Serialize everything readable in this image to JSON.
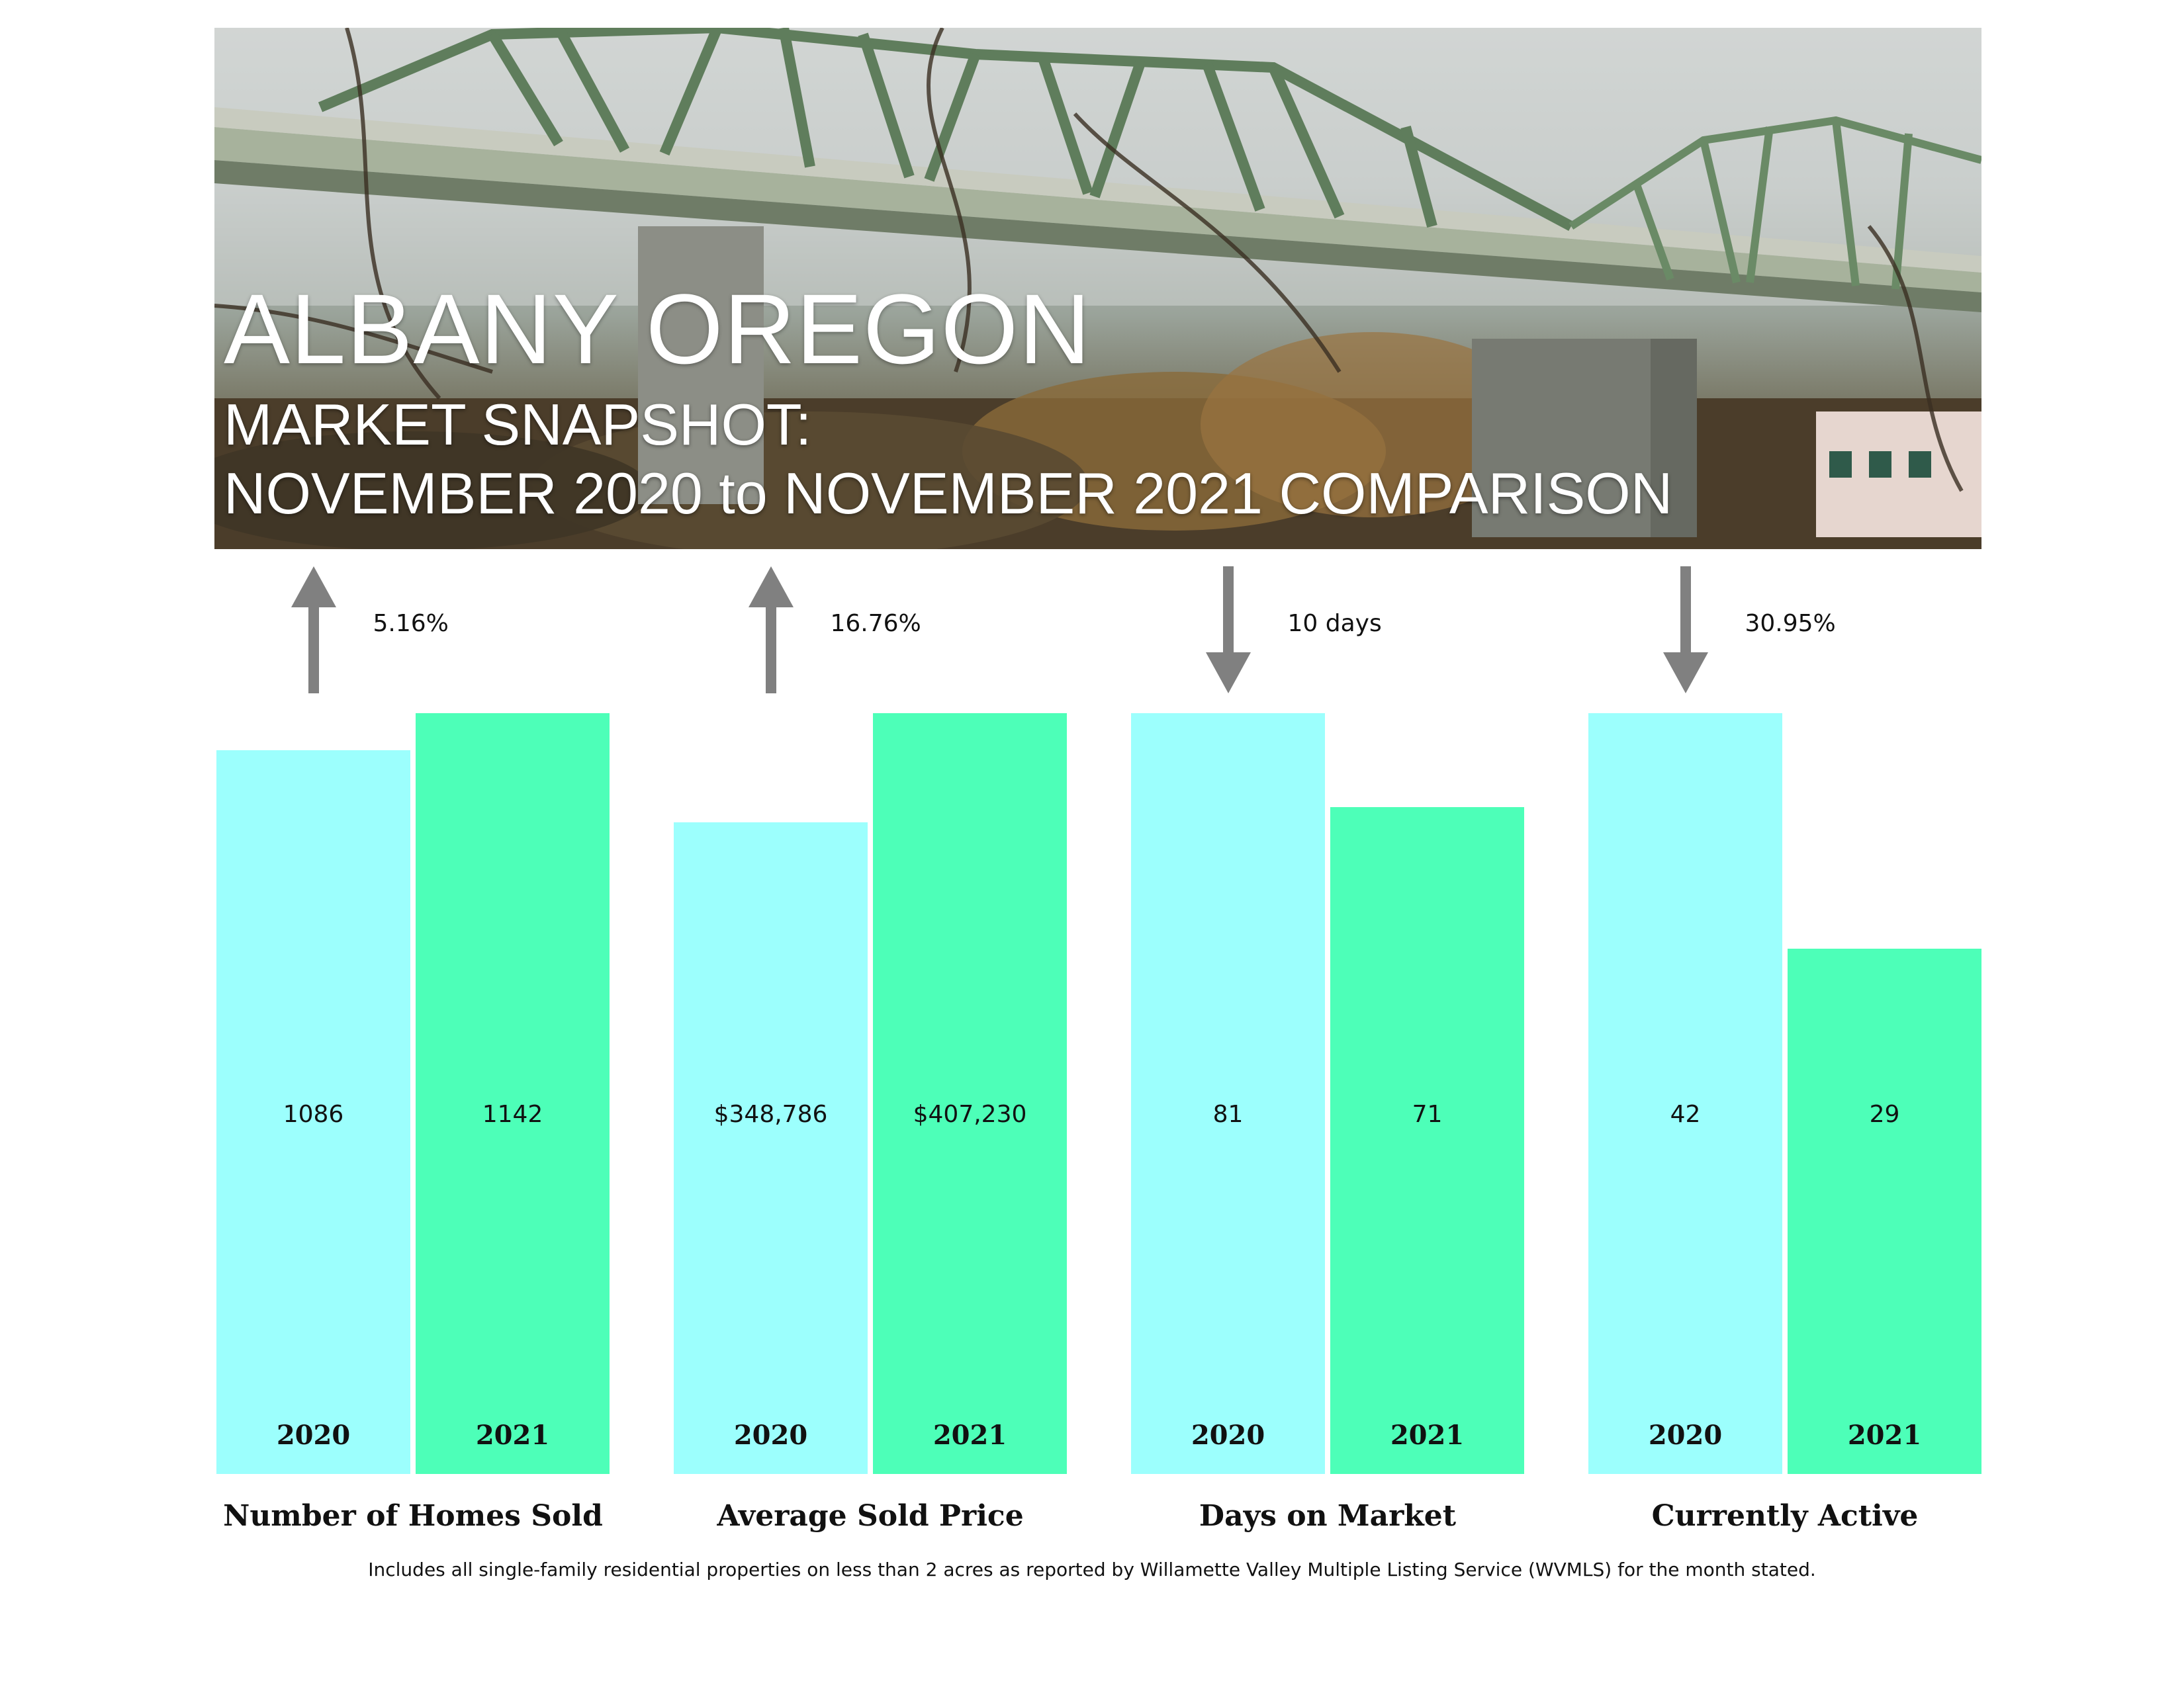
{
  "header": {
    "title": "ALBANY OREGON",
    "subtitle_line1": "MARKET SNAPSHOT:",
    "subtitle_line2": "NOVEMBER 2020 to NOVEMBER 2021 COMPARISON"
  },
  "colors": {
    "bar_2020": "#9cfffd",
    "bar_2021": "#4dffb8",
    "arrow": "#808080"
  },
  "chart_data": {
    "type": "bar",
    "series": [
      {
        "name": "2020",
        "values": [
          1086,
          348786,
          81,
          42
        ]
      },
      {
        "name": "2021",
        "values": [
          1142,
          407230,
          71,
          29
        ]
      }
    ],
    "metrics": [
      {
        "label": "Number of Homes Sold",
        "change": "5.16%",
        "direction": "up",
        "bars": [
          {
            "year": "2020",
            "value": 1086,
            "display": "1086"
          },
          {
            "year": "2021",
            "value": 1142,
            "display": "1142"
          }
        ]
      },
      {
        "label": "Average Sold Price",
        "change": "16.76%",
        "direction": "up",
        "bars": [
          {
            "year": "2020",
            "value": 348786,
            "display": "$348,786"
          },
          {
            "year": "2021",
            "value": 407230,
            "display": "$407,230"
          }
        ]
      },
      {
        "label": "Days on Market",
        "change": "10 days",
        "direction": "down",
        "bars": [
          {
            "year": "2020",
            "value": 81,
            "display": "81"
          },
          {
            "year": "2021",
            "value": 71,
            "display": "71"
          }
        ]
      },
      {
        "label": "Currently Active",
        "change": "30.95%",
        "direction": "down",
        "bars": [
          {
            "year": "2020",
            "value": 42,
            "display": "42"
          },
          {
            "year": "2021",
            "value": 29,
            "display": "29"
          }
        ]
      }
    ]
  },
  "footnote": "Includes all single-family residential properties on less than 2 acres as reported by Willamette Valley Multiple Listing Service (WVMLS) for the month stated."
}
